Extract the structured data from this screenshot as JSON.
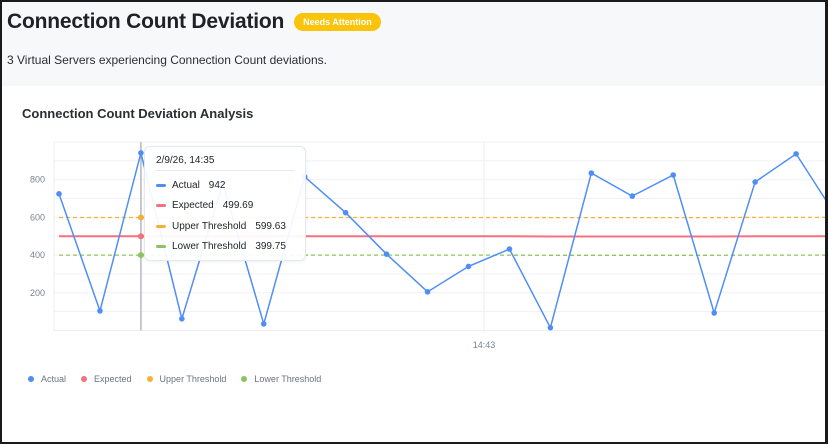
{
  "header": {
    "title": "Connection Count Deviation",
    "badge": "Needs Attention",
    "subtitle": "3 Virtual Servers experiencing Connection Count deviations."
  },
  "card": {
    "title": "Connection Count Deviation Analysis"
  },
  "tooltip": {
    "title": "2/9/26, 14:35",
    "rows": [
      {
        "label": "Actual",
        "value": "942",
        "color": "#4f8ef7"
      },
      {
        "label": "Expected",
        "value": "499.69",
        "color": "#f7707f"
      },
      {
        "label": "Upper Threshold",
        "value": "599.63",
        "color": "#f5b234"
      },
      {
        "label": "Lower Threshold",
        "value": "399.75",
        "color": "#8ec45d"
      }
    ]
  },
  "legend": [
    {
      "label": "Actual",
      "color": "#4f8ef7"
    },
    {
      "label": "Expected",
      "color": "#f7707f"
    },
    {
      "label": "Upper Threshold",
      "color": "#f5b234"
    },
    {
      "label": "Lower Threshold",
      "color": "#8ec45d"
    }
  ],
  "colors": {
    "actual": "#4f8ef7",
    "expected": "#f7707f",
    "upper": "#f5b234",
    "lower": "#8ec45d",
    "badge": "#fcc30b"
  },
  "chart_data": {
    "type": "line",
    "title": "Connection Count Deviation Analysis",
    "xlabel": "",
    "ylabel": "",
    "x_tick_labels": [
      "14:43"
    ],
    "y_ticks": [
      200,
      400,
      600,
      800
    ],
    "ylim": [
      0,
      1000
    ],
    "grid": true,
    "legend_position": "bottom-left",
    "x": [
      0,
      1,
      2,
      3,
      4,
      5,
      6,
      7,
      8,
      9,
      10,
      11,
      12,
      13,
      14,
      15,
      16,
      17,
      18,
      19
    ],
    "series": [
      {
        "name": "Actual",
        "values": [
          725,
          104,
          942,
          62,
          780,
          35,
          815,
          625,
          405,
          205,
          340,
          432,
          15,
          835,
          713,
          825,
          93,
          788,
          937,
          600
        ]
      },
      {
        "name": "Expected",
        "values": [
          499.69,
          499.69,
          499.69,
          499.69,
          499.69,
          499.69,
          499.69,
          499.69,
          499.69,
          499.69,
          499.69,
          499.69,
          499,
          499,
          499,
          499,
          499,
          500,
          500,
          500
        ]
      },
      {
        "name": "Upper Threshold",
        "values": [
          599.63,
          599.63,
          599.63,
          599.63,
          599.63,
          599.63,
          599.63,
          599.63,
          599.63,
          599.63,
          599.63,
          599.63,
          599,
          599,
          599,
          599,
          599,
          600,
          600,
          600
        ]
      },
      {
        "name": "Lower Threshold",
        "values": [
          399.75,
          399.75,
          399.75,
          399.75,
          399.75,
          399.75,
          399.75,
          399.75,
          399.75,
          399.75,
          399.75,
          399.75,
          399,
          399,
          399,
          399,
          399,
          400,
          400,
          400
        ]
      }
    ],
    "hover": {
      "index": 2,
      "label": "2/9/26, 14:35"
    }
  }
}
